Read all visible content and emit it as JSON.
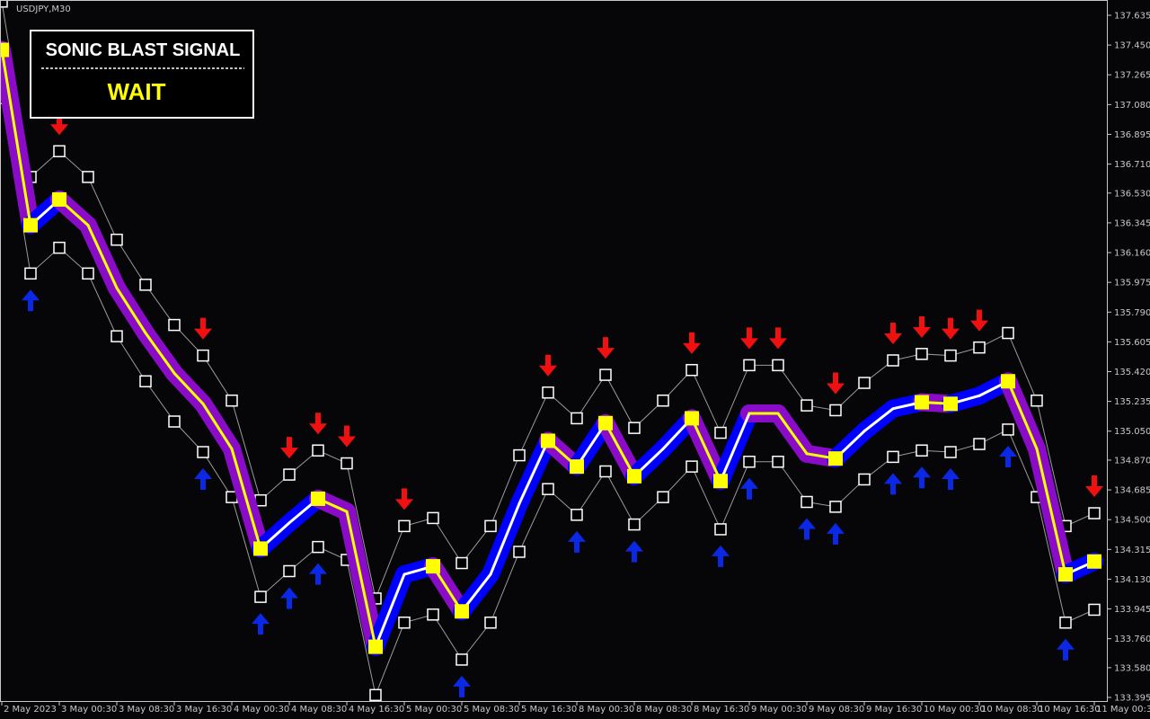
{
  "chart_data": {
    "type": "signal-bands",
    "symbol": "USDJPY,M30",
    "panel": {
      "title": "SONIC BLAST SIGNAL",
      "status": "WAIT"
    },
    "categories": [
      "2 May 2023",
      null,
      "3 May 00:30",
      null,
      "3 May 08:30",
      null,
      "3 May 16:30",
      null,
      "4 May 00:30",
      null,
      "4 May 08:30",
      null,
      "4 May 16:30",
      null,
      "5 May 00:30",
      null,
      "5 May 08:30",
      null,
      "5 May 16:30",
      null,
      "8 May 00:30",
      null,
      "8 May 08:30",
      null,
      "8 May 16:30",
      null,
      "9 May 00:30",
      null,
      "9 May 08:30",
      null,
      "9 May 16:30",
      null,
      "10 May 00:30",
      null,
      "10 May 08:30",
      null,
      "10 May 16:30",
      null,
      "11 May 00:30"
    ],
    "series": [
      {
        "name": "center",
        "color": "#ffff00",
        "rise_color": "#ffffff",
        "halo_fall": "#8a0cc8",
        "halo_rise": "#0000ff",
        "values": [
          137.42,
          136.33,
          136.49,
          136.33,
          135.94,
          135.66,
          135.41,
          135.22,
          134.94,
          134.32,
          134.48,
          134.63,
          134.55,
          133.71,
          134.16,
          134.21,
          133.93,
          134.16,
          134.6,
          134.99,
          134.83,
          135.1,
          134.77,
          134.94,
          135.13,
          134.74,
          135.16,
          135.16,
          134.91,
          134.88,
          135.05,
          135.19,
          135.23,
          135.22,
          135.27,
          135.36,
          134.94,
          134.16,
          134.24
        ]
      },
      {
        "name": "upper",
        "color": "#ffffff",
        "values": [
          137.72,
          136.63,
          136.79,
          136.63,
          136.24,
          135.96,
          135.71,
          135.52,
          135.24,
          134.62,
          134.78,
          134.93,
          134.85,
          134.01,
          134.46,
          134.51,
          134.23,
          134.46,
          134.9,
          135.29,
          135.13,
          135.4,
          135.07,
          135.24,
          135.43,
          135.04,
          135.46,
          135.46,
          135.21,
          135.18,
          135.35,
          135.49,
          135.53,
          135.52,
          135.57,
          135.66,
          135.24,
          134.46,
          134.54
        ]
      },
      {
        "name": "lower",
        "color": "#ffffff",
        "values": [
          137.12,
          136.03,
          136.19,
          136.03,
          135.64,
          135.36,
          135.11,
          134.92,
          134.64,
          134.02,
          134.18,
          134.33,
          134.25,
          133.41,
          133.86,
          133.91,
          133.63,
          133.86,
          134.3,
          134.69,
          134.53,
          134.8,
          134.47,
          134.64,
          134.83,
          134.44,
          134.86,
          134.86,
          134.61,
          134.58,
          134.75,
          134.89,
          134.93,
          134.92,
          134.97,
          135.06,
          134.64,
          133.86,
          133.94
        ]
      }
    ],
    "buy_signals": {
      "color": "#0a28e6",
      "indices": [
        1,
        7,
        9,
        10,
        11,
        16,
        20,
        22,
        25,
        26,
        28,
        29,
        31,
        32,
        33,
        35,
        37
      ]
    },
    "sell_signals": {
      "color": "#f01010",
      "indices": [
        2,
        7,
        10,
        11,
        12,
        14,
        19,
        21,
        24,
        26,
        27,
        29,
        31,
        32,
        33,
        34,
        38
      ]
    },
    "ylim": [
      133.395,
      137.635
    ],
    "yticks": [
      137.635,
      {
        "value": 137.45,
        "label": "137.450"
      },
      137.265,
      {
        "value": 137.08,
        "label": "137.080"
      },
      136.895,
      {
        "value": 136.71,
        "label": "136.710"
      },
      {
        "value": 136.53,
        "label": "136.530"
      },
      136.345,
      {
        "value": 136.16,
        "label": "136.160"
      },
      135.975,
      {
        "value": 135.79,
        "label": "135.790"
      },
      135.605,
      {
        "value": 135.42,
        "label": "135.420"
      },
      135.235,
      {
        "value": 135.05,
        "label": "135.050"
      },
      {
        "value": 134.87,
        "label": "134.870"
      },
      134.685,
      {
        "value": 134.5,
        "label": "134.500"
      },
      134.315,
      {
        "value": 134.13,
        "label": "134.130"
      },
      133.945,
      {
        "value": 133.76,
        "label": "133.760"
      },
      {
        "value": 133.58,
        "label": "133.580"
      },
      133.395
    ]
  }
}
